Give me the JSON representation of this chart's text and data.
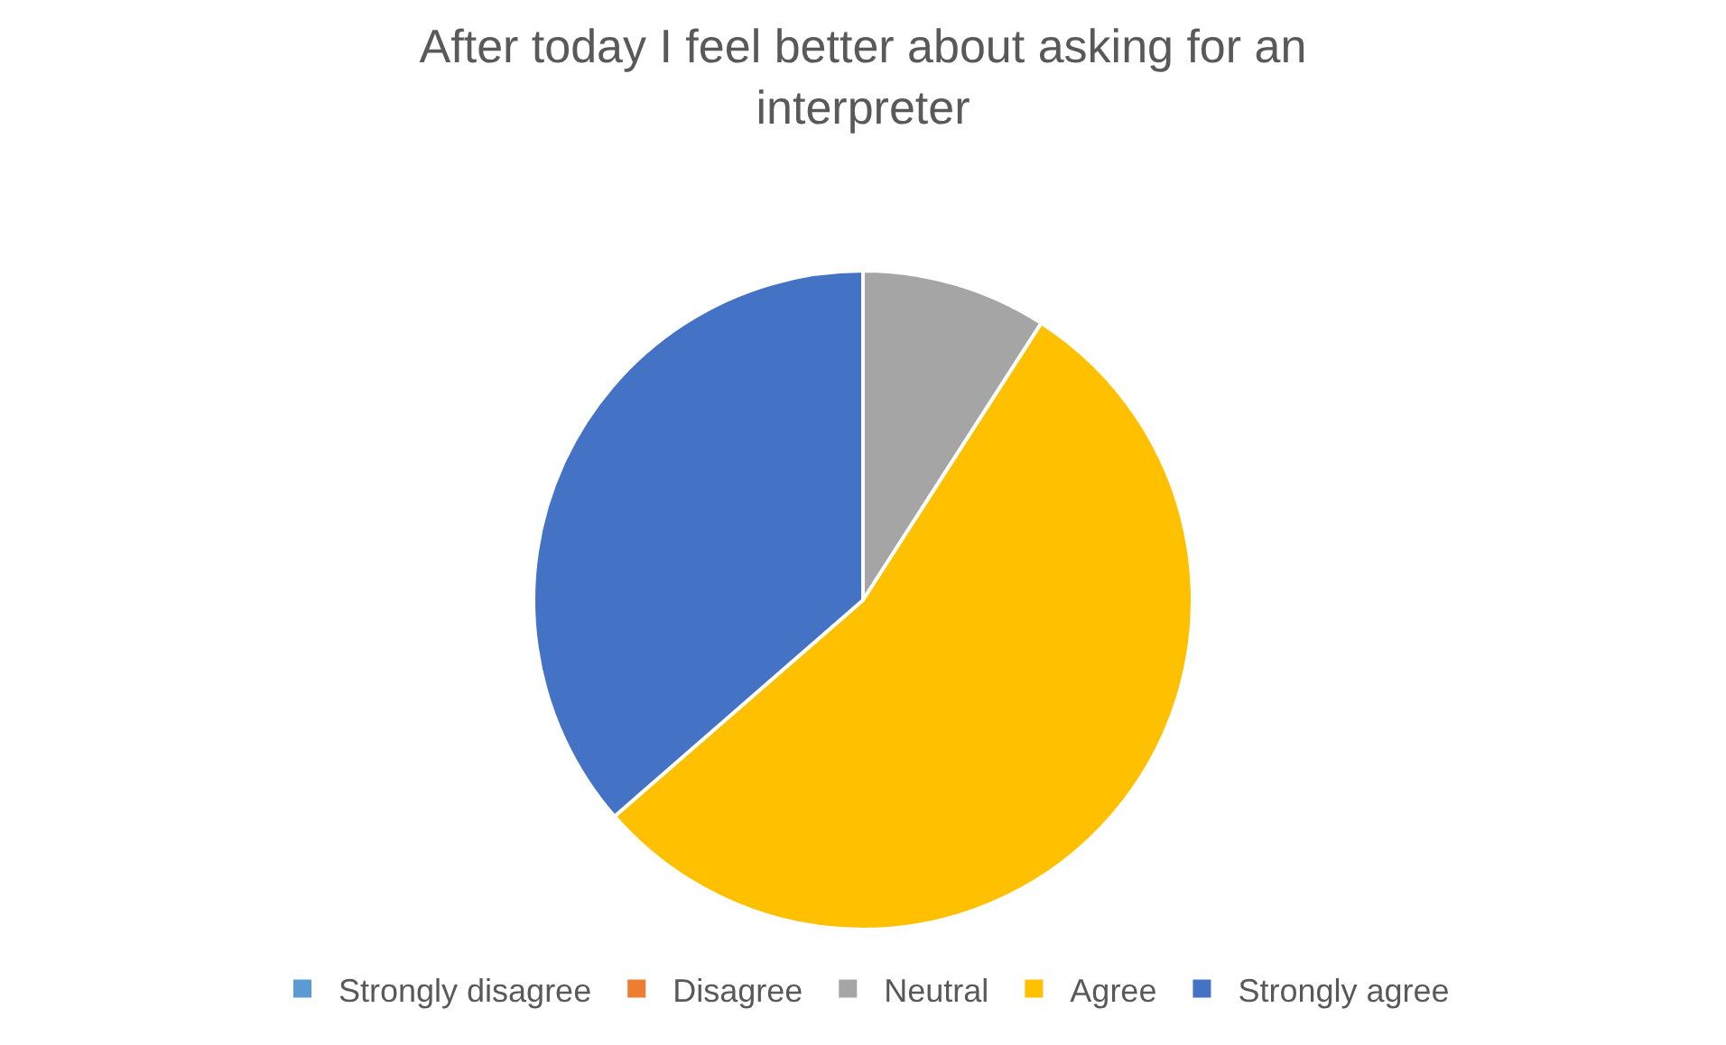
{
  "chart_data": {
    "type": "pie",
    "title": "After today I feel better about asking for an interpreter",
    "categories": [
      "Strongly disagree",
      "Disagree",
      "Neutral",
      "Agree",
      "Strongly agree"
    ],
    "values": [
      0,
      0,
      9.1,
      54.5,
      36.4
    ],
    "colors": [
      "#5b9bd5",
      "#ed7d31",
      "#a5a5a5",
      "#ffc000",
      "#4472c4"
    ],
    "legend": "bottom"
  }
}
